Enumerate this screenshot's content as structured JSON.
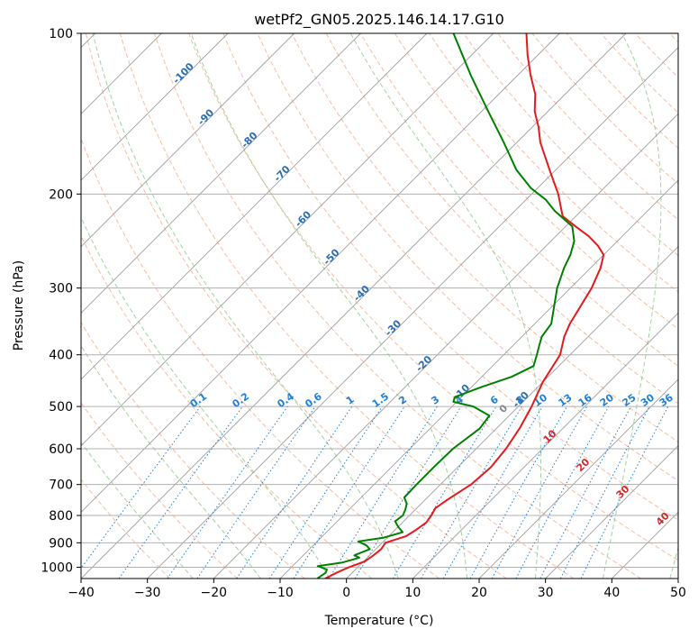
{
  "chart_data": {
    "type": "line",
    "title": "wetPf2_GN05.2025.146.14.17.G10",
    "xlabel": "Temperature (°C)",
    "ylabel": "Pressure (hPa)",
    "xlim": [
      -40,
      50
    ],
    "ylim": [
      1050,
      100
    ],
    "y_scale": "log",
    "grid": true,
    "x_ticks": [
      -40,
      -30,
      -20,
      -10,
      0,
      10,
      20,
      30,
      40,
      50
    ],
    "y_ticks": [
      100,
      200,
      300,
      400,
      500,
      600,
      700,
      800,
      900,
      1000
    ],
    "colors": {
      "temperature": "#e41a1c",
      "dewpoint": "#008000",
      "isotherm": "#9e9e9e",
      "dry_adiabat": "#f4a582",
      "moist_adiabat": "#8fca8f",
      "mixing_ratio": "#1f7fd6",
      "hghtlabel": "#2a6fb5",
      "spec_labels": "#d62728",
      "zero_label": "#888888"
    },
    "series": [
      {
        "key": "temperature",
        "points": [
          [
            1050,
            -3.2
          ],
          [
            1025,
            -2.4
          ],
          [
            1000,
            -1.3
          ],
          [
            975,
            0.2
          ],
          [
            950,
            0.6
          ],
          [
            925,
            0.8
          ],
          [
            900,
            0.5
          ],
          [
            875,
            2.6
          ],
          [
            850,
            3.2
          ],
          [
            825,
            3.6
          ],
          [
            800,
            3.3
          ],
          [
            775,
            2.8
          ],
          [
            750,
            3.3
          ],
          [
            700,
            4.6
          ],
          [
            650,
            5.0
          ],
          [
            600,
            4.5
          ],
          [
            550,
            3.5
          ],
          [
            500,
            2.0
          ],
          [
            450,
            0.0
          ],
          [
            400,
            -1.5
          ],
          [
            370,
            -3.6
          ],
          [
            350,
            -4.7
          ],
          [
            300,
            -6.8
          ],
          [
            275,
            -8.5
          ],
          [
            260,
            -10.0
          ],
          [
            250,
            -12.2
          ],
          [
            240,
            -15.0
          ],
          [
            230,
            -18.5
          ],
          [
            220,
            -22.0
          ],
          [
            200,
            -26.0
          ],
          [
            180,
            -31.0
          ],
          [
            160,
            -36.5
          ],
          [
            150,
            -39.0
          ],
          [
            140,
            -42.0
          ],
          [
            130,
            -44.5
          ],
          [
            120,
            -48.0
          ],
          [
            110,
            -51.5
          ],
          [
            100,
            -55.0
          ]
        ]
      },
      {
        "key": "dewpoint",
        "points": [
          [
            1050,
            -4.4
          ],
          [
            1025,
            -4.0
          ],
          [
            1010,
            -4.3
          ],
          [
            995,
            -6.2
          ],
          [
            980,
            -3.0
          ],
          [
            960,
            -1.2
          ],
          [
            950,
            -2.3
          ],
          [
            925,
            -0.9
          ],
          [
            910,
            -2.0
          ],
          [
            895,
            -3.8
          ],
          [
            880,
            -0.5
          ],
          [
            860,
            1.5
          ],
          [
            840,
            0.0
          ],
          [
            820,
            -1.3
          ],
          [
            800,
            -1.0
          ],
          [
            780,
            -1.5
          ],
          [
            760,
            -2.2
          ],
          [
            740,
            -3.5
          ],
          [
            700,
            -3.6
          ],
          [
            650,
            -3.6
          ],
          [
            600,
            -3.5
          ],
          [
            550,
            -2.5
          ],
          [
            520,
            -3.0
          ],
          [
            500,
            -6.8
          ],
          [
            490,
            -10.5
          ],
          [
            480,
            -11.0
          ],
          [
            460,
            -8.5
          ],
          [
            440,
            -5.5
          ],
          [
            420,
            -3.8
          ],
          [
            400,
            -5.0
          ],
          [
            385,
            -6.0
          ],
          [
            370,
            -7.0
          ],
          [
            350,
            -7.5
          ],
          [
            300,
            -12.0
          ],
          [
            275,
            -14.0
          ],
          [
            260,
            -15.0
          ],
          [
            245,
            -16.5
          ],
          [
            230,
            -19.0
          ],
          [
            215,
            -24.0
          ],
          [
            205,
            -27.0
          ],
          [
            195,
            -31.0
          ],
          [
            180,
            -36.0
          ],
          [
            160,
            -42.0
          ],
          [
            140,
            -49.0
          ],
          [
            120,
            -57.0
          ],
          [
            100,
            -66.0
          ]
        ]
      }
    ],
    "altitude_labels": [
      "-100",
      "-90",
      "-80",
      "-70",
      "-60",
      "-50",
      "-40",
      "-30",
      "-20",
      "-10",
      "-10"
    ],
    "mixing_ratio_labels": [
      "0.1",
      "0.2",
      "0.4",
      "0.6",
      "1",
      "1.5",
      "2",
      "3",
      "4",
      "6",
      "8",
      "10",
      "13",
      "16",
      "20",
      "25",
      "30",
      "36"
    ],
    "adiabat_labels": [
      "0",
      "10",
      "20",
      "30",
      "40"
    ]
  }
}
